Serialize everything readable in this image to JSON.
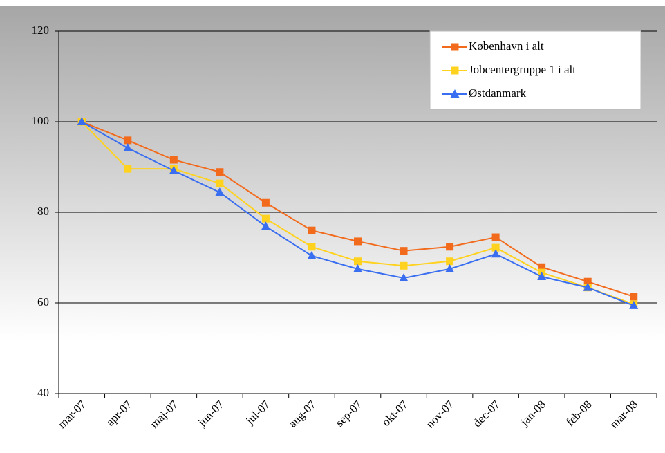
{
  "chart_data": {
    "type": "line",
    "categories": [
      "mar-07",
      "apr-07",
      "maj-07",
      "jun-07",
      "jul-07",
      "aug-07",
      "sep-07",
      "okt-07",
      "nov-07",
      "dec-07",
      "jan-08",
      "feb-08",
      "mar-08"
    ],
    "series": [
      {
        "name": "København i alt",
        "color": "#f26b1d",
        "marker": "square",
        "values": [
          100,
          95.9,
          91.6,
          88.9,
          82.1,
          76.0,
          73.6,
          71.5,
          72.4,
          74.5,
          67.9,
          64.7,
          61.4
        ]
      },
      {
        "name": "Jobcentergruppe 1 i alt",
        "color": "#ffd21f",
        "marker": "square",
        "values": [
          100,
          89.6,
          89.6,
          86.4,
          78.6,
          72.4,
          69.2,
          68.2,
          69.2,
          72.2,
          66.7,
          63.4,
          59.7
        ]
      },
      {
        "name": "Østdanmark",
        "color": "#3a6ef0",
        "marker": "triangle",
        "values": [
          100,
          94.2,
          89.2,
          84.4,
          76.9,
          70.4,
          67.5,
          65.5,
          67.5,
          70.8,
          65.8,
          63.4,
          59.4
        ]
      }
    ],
    "ylim": [
      40,
      120
    ],
    "yticks": [
      40,
      60,
      80,
      100,
      120
    ],
    "grid": true,
    "legend": "upper right"
  }
}
